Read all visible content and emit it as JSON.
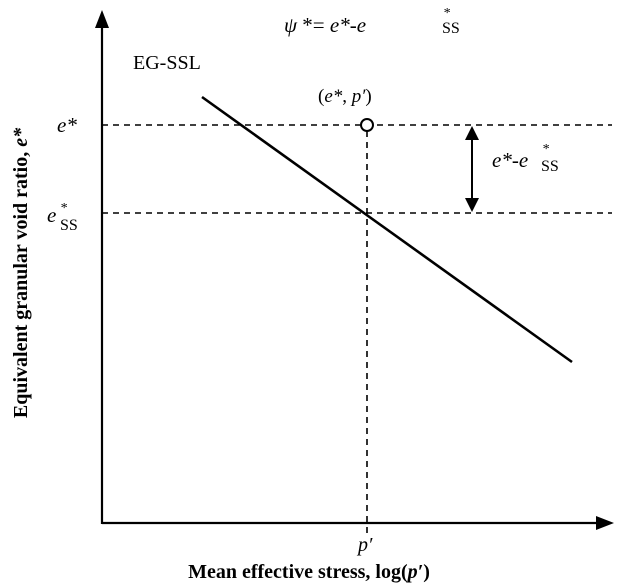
{
  "diagram": {
    "equation": {
      "psi": "ψ",
      "star_eq": " *= ",
      "e_star": "e*",
      "dash": "-",
      "e_base": "e",
      "ss_sup": "*",
      "ss_sub": "SS"
    },
    "curve_label": "EG-SSL",
    "point_label": {
      "open_paren": "(",
      "e": "e*",
      "comma": ", ",
      "p": "p′",
      "close_paren": ")"
    },
    "y_tick_estar": "e*",
    "y_tick_ess": {
      "base": "e",
      "sup": "*",
      "sub": "SS"
    },
    "diff_label": {
      "e_star": "e*",
      "dash": "-",
      "e_base": "e",
      "sup": "*",
      "sub": "SS"
    },
    "x_tick_p": "p′",
    "x_axis_label": {
      "text": "Mean effective stress, log(",
      "p": "p′",
      "close": ")"
    },
    "y_axis_label": {
      "text": "Equivalent granular void ratio, ",
      "e": "e*"
    },
    "colors": {
      "line": "#000000",
      "background": "#ffffff"
    }
  }
}
